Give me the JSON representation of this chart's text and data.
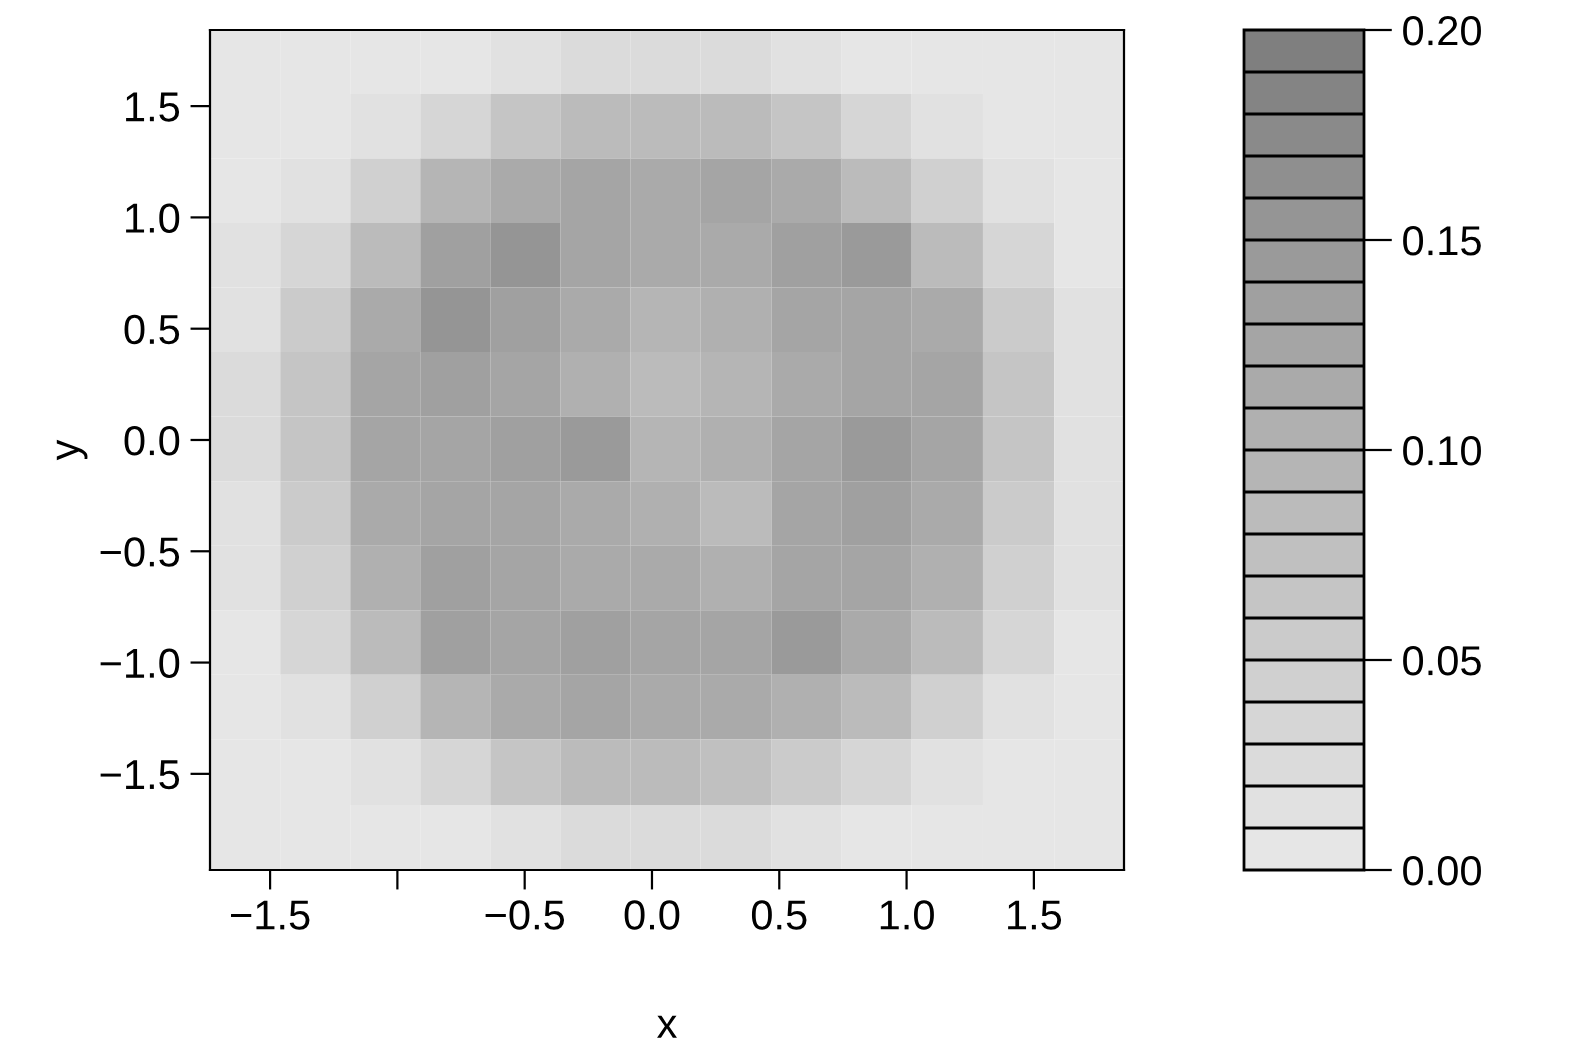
{
  "chart_data": {
    "type": "heatmap",
    "xlabel": "x",
    "ylabel": "y",
    "x": [
      -1.6,
      -1.32,
      -1.05,
      -0.77,
      -0.5,
      -0.22,
      0.05,
      0.33,
      0.61,
      0.88,
      1.16,
      1.44,
      1.72
    ],
    "y": [
      1.7,
      1.41,
      1.12,
      0.83,
      0.54,
      0.25,
      -0.04,
      -0.33,
      -0.62,
      -0.91,
      -1.2,
      -1.49,
      -1.79
    ],
    "xlim": [
      -1.736,
      1.854
    ],
    "ylim": [
      -1.932,
      1.842
    ],
    "xticks": [
      -1.5,
      {
        "value": -1,
        "label": null
      },
      -0.5,
      {
        "value": 0,
        "label": "0.0"
      },
      0.5,
      {
        "value": 1,
        "label": "1.0"
      },
      1.5
    ],
    "yticks": [
      -1.5,
      {
        "value": -1,
        "label": "−1.0"
      },
      -0.5,
      {
        "value": 0,
        "label": "0.0"
      },
      0.5,
      {
        "value": 1,
        "label": "1.0"
      },
      1.5
    ],
    "clim": [
      0.0,
      0.2
    ],
    "cticks": [
      {
        "value": 0.0,
        "label": "0.00"
      },
      0.05,
      {
        "value": 0.1,
        "label": "0.10"
      },
      0.15,
      {
        "value": 0.2,
        "label": "0.20"
      }
    ],
    "cells": [
      [
        0,
        0,
        0,
        0,
        0.01,
        0.02,
        0.02,
        0.02,
        0.01,
        0,
        0,
        0,
        0
      ],
      [
        0,
        0,
        0.01,
        0.03,
        0.06,
        0.08,
        0.08,
        0.08,
        0.06,
        0.03,
        0.01,
        0,
        0
      ],
      [
        0,
        0.01,
        0.04,
        0.09,
        0.11,
        0.12,
        0.11,
        0.12,
        0.11,
        0.08,
        0.04,
        0.01,
        0
      ],
      [
        0.01,
        0.03,
        0.08,
        0.13,
        0.15,
        0.12,
        0.11,
        0.11,
        0.13,
        0.14,
        0.08,
        0.03,
        0
      ],
      [
        0.01,
        0.05,
        0.11,
        0.15,
        0.13,
        0.11,
        0.09,
        0.1,
        0.12,
        0.12,
        0.11,
        0.05,
        0.01
      ],
      [
        0.02,
        0.06,
        0.12,
        0.13,
        0.12,
        0.1,
        0.08,
        0.09,
        0.11,
        0.12,
        0.12,
        0.06,
        0.01
      ],
      [
        0.02,
        0.06,
        0.12,
        0.12,
        0.13,
        0.14,
        0.09,
        0.1,
        0.12,
        0.14,
        0.12,
        0.06,
        0.01
      ],
      [
        0.01,
        0.05,
        0.11,
        0.12,
        0.12,
        0.11,
        0.1,
        0.08,
        0.12,
        0.13,
        0.11,
        0.05,
        0.01
      ],
      [
        0.01,
        0.04,
        0.1,
        0.13,
        0.12,
        0.11,
        0.11,
        0.1,
        0.12,
        0.12,
        0.1,
        0.04,
        0.01
      ],
      [
        0,
        0.03,
        0.08,
        0.13,
        0.12,
        0.13,
        0.12,
        0.12,
        0.14,
        0.11,
        0.08,
        0.03,
        0
      ],
      [
        0,
        0.01,
        0.04,
        0.09,
        0.11,
        0.12,
        0.11,
        0.11,
        0.1,
        0.08,
        0.04,
        0.01,
        0
      ],
      [
        0,
        0,
        0.01,
        0.03,
        0.06,
        0.08,
        0.08,
        0.07,
        0.05,
        0.03,
        0.01,
        0,
        0
      ],
      [
        0,
        0,
        0,
        0,
        0.01,
        0.02,
        0.02,
        0.02,
        0.01,
        0,
        0,
        0,
        0
      ]
    ]
  }
}
